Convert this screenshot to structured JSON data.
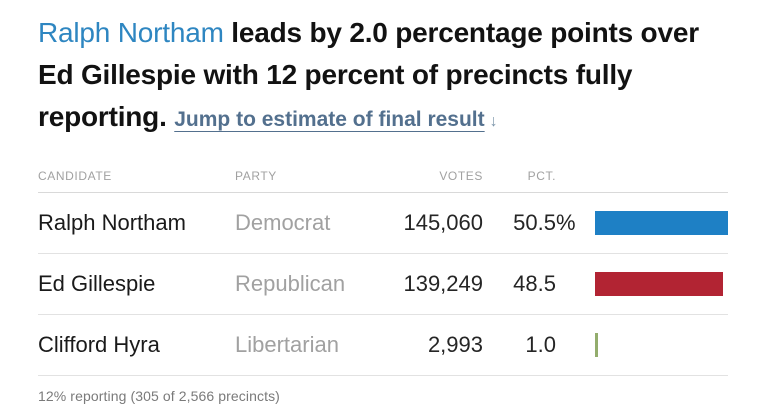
{
  "colors": {
    "dem_blue": "#1e80c5",
    "rep_red": "#b22433",
    "lib_green": "#93ad6d",
    "headline_name_blue": "#2e86c1",
    "link_blue": "#53708e",
    "link_arrow_blue": "#7d96ab"
  },
  "headline": {
    "leader_name": "Ralph Northam",
    "text_rest": " leads by 2.0 percentage points over Ed Gillespie with 12 percent of precincts fully reporting. ",
    "link_label": "Jump to estimate of final result",
    "link_arrow": "↓"
  },
  "table": {
    "headers": {
      "candidate": "Candidate",
      "party": "Party",
      "votes": "Votes",
      "pct": "Pct."
    },
    "rows": [
      {
        "candidate": "Ralph Northam",
        "party": "Democrat",
        "votes": "145,060",
        "pct": "50.5",
        "pct_suffix": "%",
        "color": "#1e80c5"
      },
      {
        "candidate": "Ed Gillespie",
        "party": "Republican",
        "votes": "139,249",
        "pct": "48.5",
        "pct_suffix": "",
        "color": "#b22433"
      },
      {
        "candidate": "Clifford Hyra",
        "party": "Libertarian",
        "votes": "2,993",
        "pct": "1.0",
        "pct_suffix": "",
        "color": "#93ad6d"
      }
    ]
  },
  "footer": {
    "reporting_note": "12% reporting (305 of 2,566 precincts)"
  },
  "chart_data": {
    "type": "bar",
    "orientation": "horizontal",
    "categories": [
      "Ralph Northam",
      "Ed Gillespie",
      "Clifford Hyra"
    ],
    "series": [
      {
        "name": "Pct.",
        "values": [
          50.5,
          48.5,
          1.0
        ]
      },
      {
        "name": "Votes",
        "values": [
          145060,
          139249,
          2993
        ]
      }
    ],
    "bar_colors": [
      "#1e80c5",
      "#b22433",
      "#93ad6d"
    ],
    "title": "Ralph Northam leads by 2.0 percentage points over Ed Gillespie with 12 percent of precincts fully reporting.",
    "xlabel": "",
    "ylabel": "",
    "xlim": [
      0,
      50.5
    ],
    "grid": false,
    "legend": false,
    "annotations": [
      "12% reporting (305 of 2,566 precincts)"
    ]
  }
}
